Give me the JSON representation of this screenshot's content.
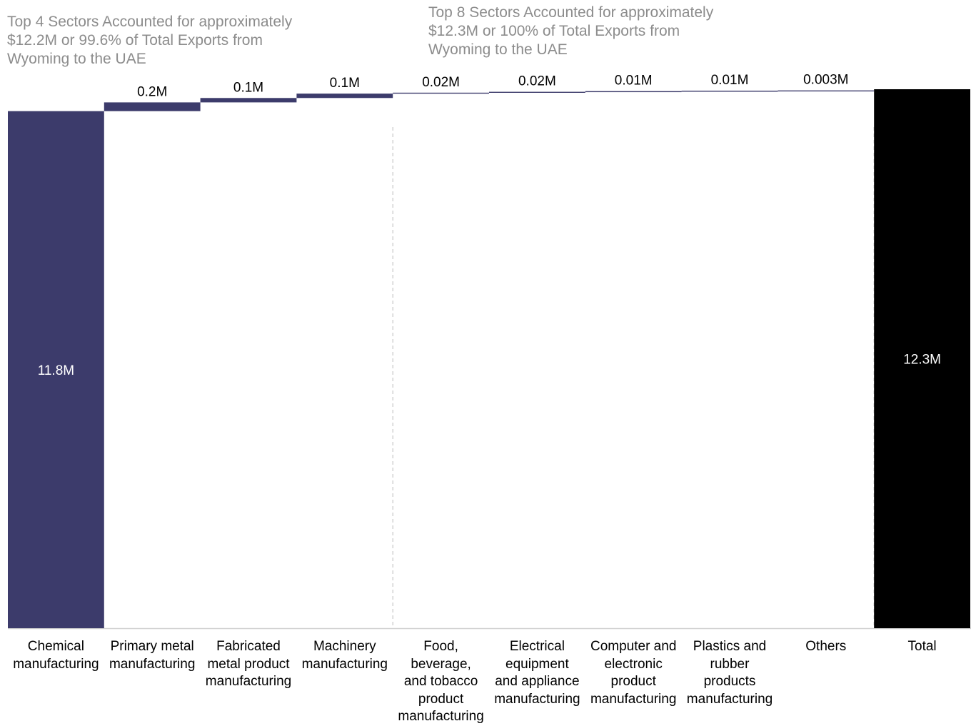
{
  "chart_data": {
    "type": "bar",
    "subtype": "waterfall",
    "categories": [
      [
        "Chemical",
        "manufacturing"
      ],
      [
        "Primary metal",
        "manufacturing"
      ],
      [
        "Fabricated",
        "metal product",
        "manufacturing"
      ],
      [
        "Machinery",
        "manufacturing"
      ],
      [
        "Food,",
        "beverage,",
        "and tobacco",
        "product",
        "manufacturing"
      ],
      [
        "Electrical",
        "equipment",
        "and appliance",
        "manufacturing"
      ],
      [
        "Computer and",
        "electronic",
        "product",
        "manufacturing"
      ],
      [
        "Plastics and",
        "rubber",
        "products",
        "manufacturing"
      ],
      [
        "Others"
      ],
      [
        "Total"
      ]
    ],
    "values": [
      11.8,
      0.2,
      0.1,
      0.1,
      0.02,
      0.02,
      0.01,
      0.01,
      0.003,
      12.3
    ],
    "value_labels": [
      "11.8M",
      "0.2M",
      "0.1M",
      "0.1M",
      "0.02M",
      "0.02M",
      "0.01M",
      "0.01M",
      "0.003M",
      "12.3M"
    ],
    "ylim": [
      0,
      12.3
    ],
    "grid": false,
    "colors": {
      "bar": "#3c3b6b",
      "total": "#000000",
      "label_inside": "#ffffff",
      "annotation": "#8c8c8c",
      "divider": "#c8c8c8",
      "axis": "#d0d0d0"
    },
    "annotations": [
      {
        "lines": [
          "Top 4 Sectors Accounted for approximately",
          "$12.2M or 99.6% of Total Exports from",
          "Wyoming to the UAE"
        ]
      },
      {
        "lines": [
          "Top 8 Sectors Accounted for approximately",
          "$12.3M or 100% of Total Exports from",
          "Wyoming to the UAE"
        ]
      }
    ]
  }
}
